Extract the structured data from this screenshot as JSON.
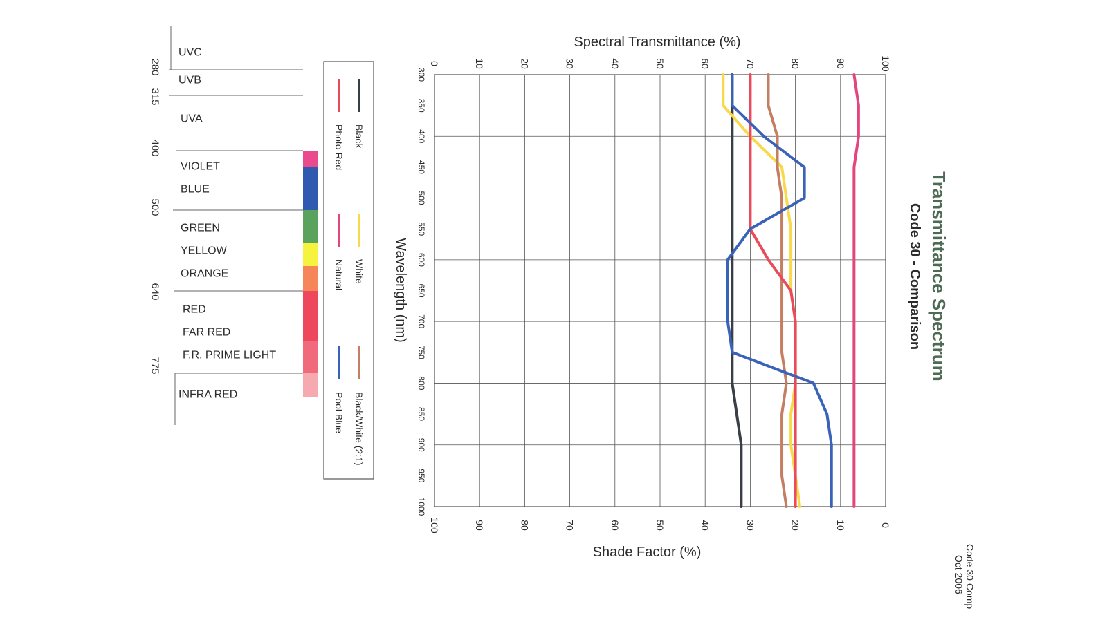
{
  "chart_data": {
    "type": "line",
    "title": "Transmittance Spectrum",
    "subtitle": "Code 30 - Comparison",
    "top_axis_label": "Spectral Transmittance (%)",
    "bottom_axis_label": "Shade Factor (%)",
    "wavelength_axis_label": "Wavelength (nm)",
    "transmittance_ticks": [
      "0",
      "10",
      "20",
      "30",
      "40",
      "50",
      "60",
      "70",
      "80",
      "90",
      "100"
    ],
    "shade_ticks": [
      "100",
      "90",
      "80",
      "70",
      "60",
      "50",
      "40",
      "30",
      "20",
      "10",
      "0"
    ],
    "wavelength_ticks": [
      "300",
      "350",
      "400",
      "450",
      "500",
      "550",
      "600",
      "650",
      "700",
      "750",
      "800",
      "850",
      "900",
      "950",
      "1000"
    ],
    "wavelength_range": [
      300,
      1000
    ],
    "transmittance_range": [
      0,
      100
    ],
    "grid": true,
    "legend_placement": "left",
    "wavelengths": [
      300,
      350,
      400,
      450,
      500,
      550,
      600,
      650,
      700,
      750,
      800,
      850,
      900,
      950,
      1000
    ],
    "series": [
      {
        "name": "Black",
        "color": "#3a3f47",
        "values": [
          66,
          66,
          66,
          66,
          66,
          66,
          66,
          66,
          66,
          66,
          66,
          67,
          68,
          68,
          68
        ]
      },
      {
        "name": "White",
        "color": "#f7d94a",
        "values": [
          64,
          64,
          70,
          77,
          78,
          79,
          79,
          79,
          80,
          80,
          80,
          79,
          79,
          80,
          81
        ]
      },
      {
        "name": "Black/White (2:1)",
        "color": "#c47f63",
        "values": [
          74,
          74,
          76,
          76,
          77,
          77,
          77,
          77,
          77,
          77,
          78,
          77,
          77,
          77,
          78
        ]
      },
      {
        "name": "Photo Red",
        "color": "#ea4a5c",
        "values": [
          70,
          70,
          70,
          70,
          70,
          70,
          74,
          79,
          80,
          80,
          80,
          80,
          80,
          80,
          80
        ]
      },
      {
        "name": "Natural",
        "color": "#e5457f",
        "values": [
          93,
          94,
          94,
          93,
          93,
          93,
          93,
          93,
          93,
          93,
          93,
          93,
          93,
          93,
          93
        ]
      },
      {
        "name": "Pool Blue",
        "color": "#3a62b8",
        "values": [
          66,
          66,
          73,
          82,
          82,
          70,
          65,
          65,
          65,
          66,
          84,
          87,
          88,
          88,
          88
        ]
      }
    ]
  },
  "spectrum_bands": [
    {
      "label": "UVC",
      "color": ""
    },
    {
      "label": "UVB",
      "color": ""
    },
    {
      "label": "UVA",
      "color": ""
    },
    {
      "label": "VIOLET",
      "color": "#e94b8d"
    },
    {
      "label": "BLUE",
      "color": "#3059b0"
    },
    {
      "label": "GREEN",
      "color": "#5aa35c"
    },
    {
      "label": "YELLOW",
      "color": "#f5f33d"
    },
    {
      "label": "ORANGE",
      "color": "#f58659"
    },
    {
      "label": "RED",
      "color": "#ee485c"
    },
    {
      "label": "FAR RED",
      "color": "#ee485c"
    },
    {
      "label": "F.R. PRIME LIGHT",
      "color": "#f06a7c"
    },
    {
      "label": "INFRA RED",
      "color": "#f6aab0"
    }
  ],
  "band_boundaries": [
    "280",
    "315",
    "400",
    "500",
    "640",
    "775"
  ],
  "footer": {
    "line1": "Code 30 Comp",
    "line2": "Oct 2006"
  }
}
